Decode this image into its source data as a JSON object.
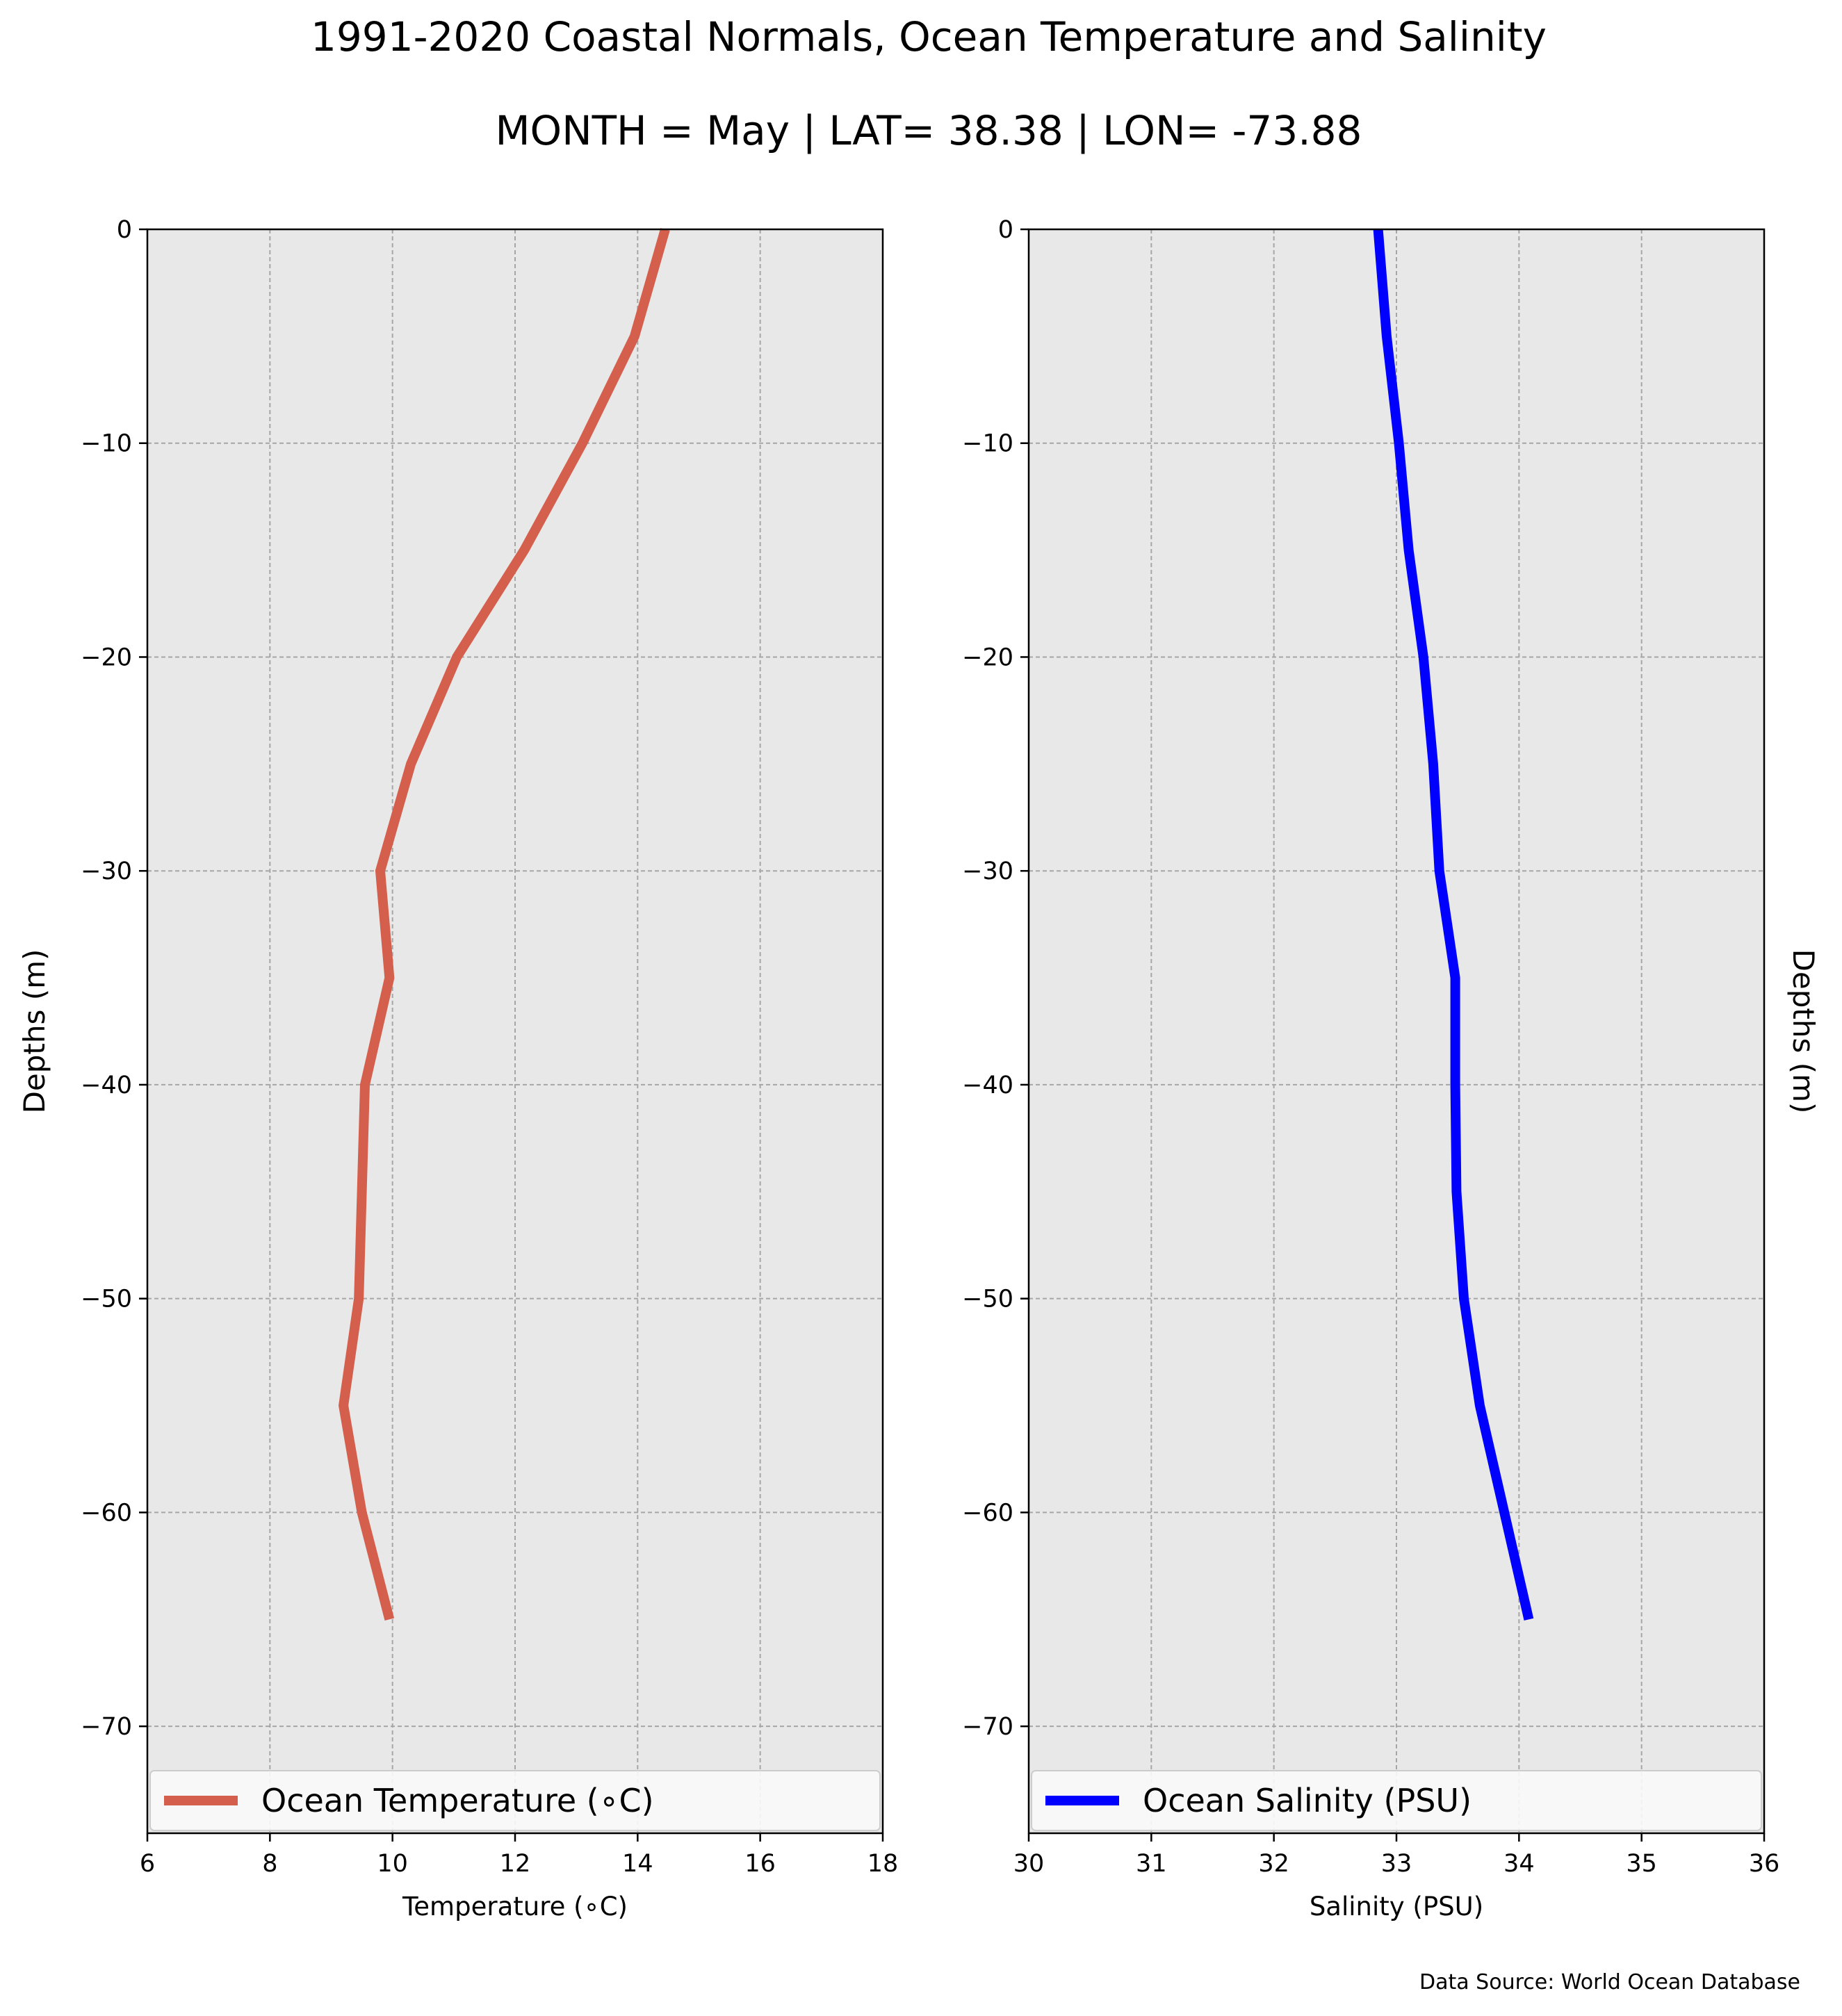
{
  "figure": {
    "title": "1991-2020 Coastal Normals, Ocean Temperature and Salinity",
    "subtitle": "MONTH = May | LAT= 38.38 | LON= -73.88",
    "source": "Data Source: World Ocean Database"
  },
  "chart_data": [
    {
      "type": "line",
      "title": "",
      "xlabel": "Temperature ($^\\circ$C)",
      "xlabel_display": "Temperature (∘C)",
      "ylabel": "Depths (m)",
      "xlim": [
        6,
        18
      ],
      "ylim": [
        -75,
        0
      ],
      "xticks": [
        6,
        8,
        10,
        12,
        14,
        16,
        18
      ],
      "yticks": [
        0,
        -10,
        -20,
        -30,
        -40,
        -50,
        -60,
        -70
      ],
      "grid": true,
      "legend_position": "lower-center",
      "series": [
        {
          "name": "Ocean Temperature (∘C)",
          "color": "#d45f4c",
          "x": [
            14.45,
            13.95,
            13.1,
            12.15,
            11.05,
            10.3,
            9.8,
            9.95,
            9.55,
            9.5,
            9.45,
            9.2,
            9.5,
            9.95
          ],
          "y": [
            0,
            -5,
            -10,
            -15,
            -20,
            -25,
            -30,
            -35,
            -40,
            -45,
            -50,
            -55,
            -60,
            -65
          ]
        }
      ]
    },
    {
      "type": "line",
      "title": "",
      "xlabel": "Salinity (PSU)",
      "ylabel": "Depths (m)",
      "xlim": [
        30,
        36
      ],
      "ylim": [
        -75,
        0
      ],
      "xticks": [
        30,
        31,
        32,
        33,
        34,
        35,
        36
      ],
      "yticks": [
        0,
        -10,
        -20,
        -30,
        -40,
        -50,
        -60,
        -70
      ],
      "grid": true,
      "legend_position": "lower-center",
      "series": [
        {
          "name": "Ocean Salinity (PSU)",
          "color": "#0000ff",
          "x": [
            32.85,
            32.92,
            33.02,
            33.1,
            33.22,
            33.3,
            33.35,
            33.48,
            33.48,
            33.49,
            33.55,
            33.68,
            33.88,
            34.08
          ],
          "y": [
            0,
            -5,
            -10,
            -15,
            -20,
            -25,
            -30,
            -35,
            -40,
            -45,
            -50,
            -55,
            -60,
            -65
          ]
        }
      ]
    }
  ],
  "style": {
    "axes_facecolor": "#e8e8e8",
    "grid_color": "#a6a6a6"
  }
}
